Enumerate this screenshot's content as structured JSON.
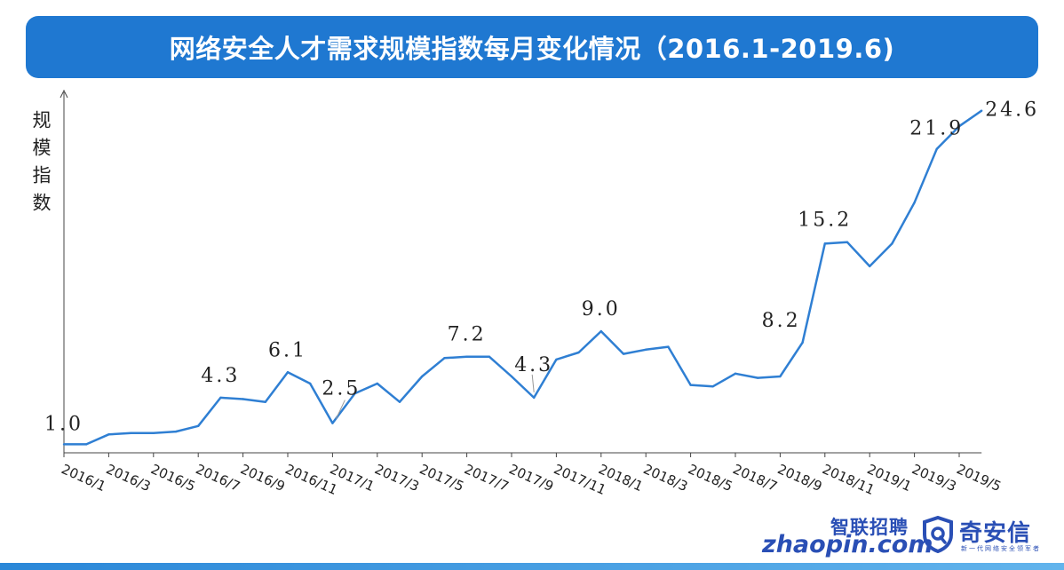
{
  "title": "网络安全人才需求规模指数每月变化情况（2016.1-2019.6)",
  "chart_data": {
    "type": "line",
    "ylabel": "规模指数",
    "xlabel": "",
    "ylim": [
      0.4,
      25.4
    ],
    "grid": false,
    "legend": "none",
    "color": "#2f7fd3",
    "x": [
      "2016/1",
      "2016/2",
      "2016/3",
      "2016/4",
      "2016/5",
      "2016/6",
      "2016/7",
      "2016/8",
      "2016/9",
      "2016/10",
      "2016/11",
      "2016/12",
      "2017/1",
      "2017/2",
      "2017/3",
      "2017/4",
      "2017/5",
      "2017/6",
      "2017/7",
      "2017/8",
      "2017/9",
      "2017/10",
      "2017/11",
      "2017/12",
      "2018/1",
      "2018/2",
      "2018/3",
      "2018/4",
      "2018/5",
      "2018/6",
      "2018/7",
      "2018/8",
      "2018/9",
      "2018/10",
      "2018/11",
      "2018/12",
      "2019/1",
      "2019/2",
      "2019/3",
      "2019/4",
      "2019/5",
      "2019/6"
    ],
    "values": [
      1.0,
      1.0,
      1.7,
      1.8,
      1.8,
      1.9,
      2.3,
      4.3,
      4.2,
      4.0,
      6.1,
      5.3,
      2.5,
      4.6,
      5.3,
      4.0,
      5.8,
      7.1,
      7.2,
      7.2,
      5.8,
      4.3,
      7.0,
      7.5,
      9.0,
      7.4,
      7.7,
      7.9,
      5.2,
      5.1,
      6.0,
      5.7,
      5.8,
      8.2,
      15.2,
      15.3,
      13.6,
      15.2,
      18.1,
      21.9,
      23.5,
      24.6
    ],
    "tick_labels": [
      "2016/1",
      "2016/3",
      "2016/5",
      "2016/7",
      "2016/9",
      "2016/11",
      "2017/1",
      "2017/3",
      "2017/5",
      "2017/7",
      "2017/9",
      "2017/11",
      "2018/1",
      "2018/3",
      "2018/5",
      "2018/7",
      "2018/9",
      "2018/11",
      "2019/1",
      "2019/3",
      "2019/5"
    ],
    "annotations": [
      {
        "index": 0,
        "text": "1.0"
      },
      {
        "index": 7,
        "text": "4.3"
      },
      {
        "index": 10,
        "text": "6.1"
      },
      {
        "index": 12,
        "text": "2.5"
      },
      {
        "index": 18,
        "text": "7.2"
      },
      {
        "index": 21,
        "text": "4.3"
      },
      {
        "index": 24,
        "text": "9.0"
      },
      {
        "index": 33,
        "text": "8.2"
      },
      {
        "index": 34,
        "text": "15.2"
      },
      {
        "index": 39,
        "text": "21.9"
      },
      {
        "index": 41,
        "text": "24.6"
      }
    ]
  },
  "logos": {
    "zhaopin_cn": "智联招聘",
    "zhaopin_en": "zhaopin.com",
    "qax_cn": "奇安信",
    "qax_slogan": "新一代网络安全领军者"
  }
}
